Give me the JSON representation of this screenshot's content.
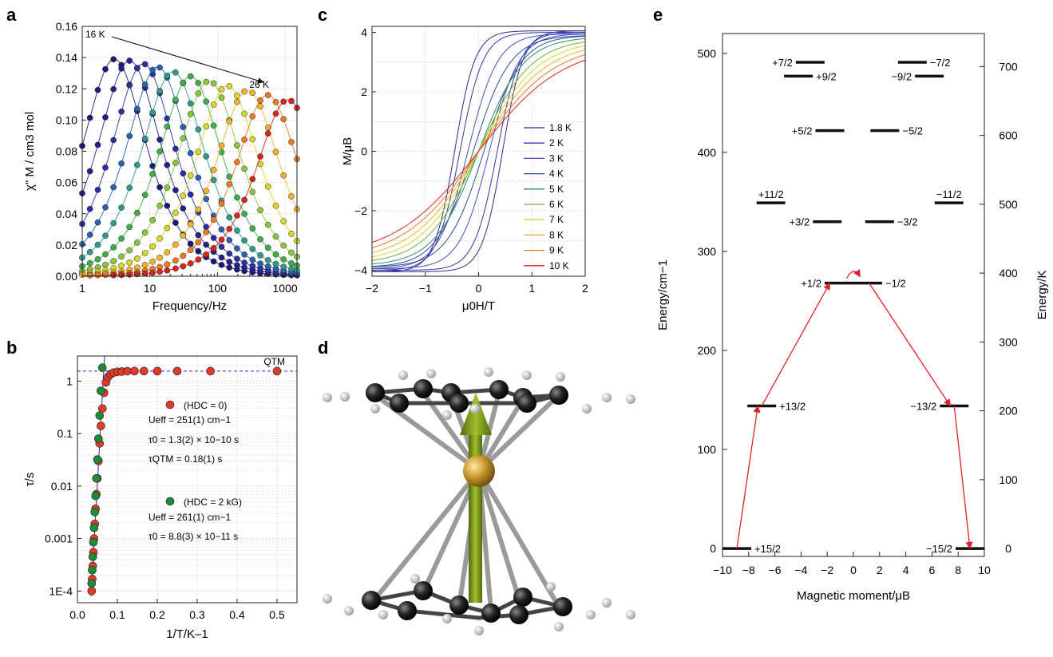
{
  "chart_data": [
    {
      "panel": "a",
      "type": "scatter",
      "xlabel": "Frequency/Hz",
      "ylabel": "χ\" M / cm3 mol",
      "xscale": "log",
      "xlim": [
        1,
        1500
      ],
      "ylim": [
        0,
        0.16
      ],
      "xticks": [
        "1",
        "10",
        "100",
        "1000"
      ],
      "yticks": [
        "0.00",
        "0.02",
        "0.04",
        "0.06",
        "0.08",
        "0.10",
        "0.12",
        "0.14",
        "0.16"
      ],
      "annotations": [
        "16 K",
        "26 K"
      ],
      "series": [
        {
          "T": 16,
          "peak_freq": 3,
          "peak_value": 0.139,
          "color": "#1a1a7a"
        },
        {
          "T": 17,
          "peak_freq": 5,
          "peak_value": 0.138,
          "color": "#22208a"
        },
        {
          "T": 18,
          "peak_freq": 8,
          "peak_value": 0.136,
          "color": "#2b2fa0"
        },
        {
          "T": 19,
          "peak_freq": 13,
          "peak_value": 0.134,
          "color": "#2c5fb0"
        },
        {
          "T": 20,
          "peak_freq": 22,
          "peak_value": 0.131,
          "color": "#2e9a8e"
        },
        {
          "T": 21,
          "peak_freq": 40,
          "peak_value": 0.128,
          "color": "#3fae4a"
        },
        {
          "T": 22,
          "peak_freq": 75,
          "peak_value": 0.125,
          "color": "#8cc63f"
        },
        {
          "T": 23,
          "peak_freq": 140,
          "peak_value": 0.122,
          "color": "#d8d82a"
        },
        {
          "T": 24,
          "peak_freq": 280,
          "peak_value": 0.119,
          "color": "#f2b52a"
        },
        {
          "T": 25,
          "peak_freq": 550,
          "peak_value": 0.116,
          "color": "#ee7a22"
        },
        {
          "T": 26,
          "peak_freq": 1100,
          "peak_value": 0.113,
          "color": "#d7261e"
        }
      ]
    },
    {
      "panel": "b",
      "type": "scatter",
      "xlabel": "1/T/K–1",
      "ylabel": "τ/s",
      "yscale": "log",
      "xlim": [
        0,
        0.55
      ],
      "ylim": [
        6e-05,
        3
      ],
      "xticks": [
        "0.0",
        "0.1",
        "0.2",
        "0.3",
        "0.4",
        "0.5"
      ],
      "yticks": [
        "1E-4",
        "0.001",
        "0.01",
        "0.1",
        "1"
      ],
      "qtm_label": "QTM",
      "series": [
        {
          "name": "(HDC = 0)",
          "color": "#e03a2a",
          "x": [
            0.0357,
            0.037,
            0.0385,
            0.04,
            0.0417,
            0.0435,
            0.0455,
            0.0476,
            0.05,
            0.0526,
            0.0556,
            0.0588,
            0.0625,
            0.0667,
            0.0714,
            0.0769,
            0.0833,
            0.0909,
            0.1,
            0.1111,
            0.125,
            0.1429,
            0.1667,
            0.2,
            0.25,
            0.3333,
            0.5
          ],
          "y": [
            0.0001,
            0.00017,
            0.0003,
            0.00055,
            0.001,
            0.0019,
            0.0037,
            0.007,
            0.014,
            0.03,
            0.065,
            0.14,
            0.3,
            0.6,
            0.95,
            1.2,
            1.35,
            1.45,
            1.5,
            1.52,
            1.54,
            1.55,
            1.55,
            1.55,
            1.55,
            1.55,
            1.55
          ]
        },
        {
          "name": "(HDC = 2 kG)",
          "color": "#1e8a3a",
          "x": [
            0.0357,
            0.037,
            0.0385,
            0.04,
            0.0417,
            0.0435,
            0.0455,
            0.0476,
            0.05,
            0.0526,
            0.0556,
            0.0588,
            0.0625
          ],
          "y": [
            0.00014,
            0.00025,
            0.00045,
            0.00085,
            0.0016,
            0.0032,
            0.0065,
            0.014,
            0.032,
            0.08,
            0.22,
            0.65,
            1.8
          ]
        }
      ],
      "legend": [
        {
          "label": "(HDC = 0)",
          "lines": [
            "Ueff = 251(1) cm−1",
            "τ0 = 1.3(2) × 10−10 s",
            "τQTM = 0.18(1) s"
          ]
        },
        {
          "label": "(HDC = 2 kG)",
          "lines": [
            "Ueff = 261(1) cm−1",
            "τ0 = 8.8(3) × 10−11 s"
          ]
        }
      ]
    },
    {
      "panel": "c",
      "type": "line",
      "xlabel": "μ0H/T",
      "ylabel": "M/μB",
      "xlim": [
        -2,
        2
      ],
      "ylim": [
        -4.2,
        4.2
      ],
      "xticks": [
        "−2",
        "−1",
        "0",
        "1",
        "2"
      ],
      "yticks": [
        "−4",
        "−2",
        "0",
        "2",
        "4"
      ],
      "series": [
        {
          "name": "1.8 K",
          "color": "#2a2a8c",
          "msat": 4.05,
          "k": 2.6,
          "coercive": 0.45
        },
        {
          "name": "2 K",
          "color": "#3336a8",
          "msat": 4.0,
          "k": 2.3,
          "coercive": 0.35
        },
        {
          "name": "3 K",
          "color": "#4a4ac4",
          "msat": 3.95,
          "k": 1.8,
          "coercive": 0.2
        },
        {
          "name": "4 K",
          "color": "#2c4f96",
          "msat": 3.9,
          "k": 1.45,
          "coercive": 0.1
        },
        {
          "name": "5 K",
          "color": "#2f8f6a",
          "msat": 3.85,
          "k": 1.2,
          "coercive": 0.0
        },
        {
          "name": "6 K",
          "color": "#6fb43a",
          "msat": 3.8,
          "k": 1.02,
          "coercive": 0.0
        },
        {
          "name": "7 K",
          "color": "#d9d633",
          "msat": 3.75,
          "k": 0.9,
          "coercive": 0.0
        },
        {
          "name": "8 K",
          "color": "#f2b32a",
          "msat": 3.7,
          "k": 0.8,
          "coercive": 0.0
        },
        {
          "name": "9 K",
          "color": "#ea7b24",
          "msat": 3.65,
          "k": 0.71,
          "coercive": 0.0
        },
        {
          "name": "10 K",
          "color": "#d8261e",
          "msat": 3.6,
          "k": 0.63,
          "coercive": 0.0
        }
      ]
    },
    {
      "panel": "e",
      "type": "scatter",
      "xlabel": "Magnetic moment/μB",
      "ylabel": "Energy/cm−1",
      "ylabel_right": "Energy/K",
      "xlim": [
        -10,
        10
      ],
      "ylim": [
        -8,
        520
      ],
      "ylim_right_K": [
        -11.5,
        748
      ],
      "xticks": [
        "−10",
        "−8",
        "−6",
        "−4",
        "−2",
        "0",
        "2",
        "4",
        "6",
        "8",
        "10"
      ],
      "yticks": [
        "0",
        "100",
        "200",
        "300",
        "400",
        "500"
      ],
      "yticks_right": [
        "0",
        "100",
        "200",
        "300",
        "400",
        "500",
        "600",
        "700"
      ],
      "levels": [
        {
          "label": "+15/2",
          "moment": -8.9,
          "energy": 0,
          "label_pos": "right"
        },
        {
          "label": "−15/2",
          "moment": 8.9,
          "energy": 0,
          "label_pos": "left"
        },
        {
          "label": "+13/2",
          "moment": -7.0,
          "energy": 144,
          "label_pos": "right"
        },
        {
          "label": "−13/2",
          "moment": 7.7,
          "energy": 144,
          "label_pos": "left"
        },
        {
          "label": "+1/2",
          "moment": -1.1,
          "energy": 268,
          "label_pos": "left"
        },
        {
          "label": "−1/2",
          "moment": 1.1,
          "energy": 268,
          "label_pos": "right"
        },
        {
          "label": "+3/2",
          "moment": -2.0,
          "energy": 330,
          "label_pos": "left"
        },
        {
          "label": "−3/2",
          "moment": 2.0,
          "energy": 330,
          "label_pos": "right"
        },
        {
          "label": "+11/2",
          "moment": -6.3,
          "energy": 349,
          "label_pos": "above"
        },
        {
          "label": "−11/2",
          "moment": 7.3,
          "energy": 349,
          "label_pos": "above"
        },
        {
          "label": "+5/2",
          "moment": -1.8,
          "energy": 422,
          "label_pos": "left"
        },
        {
          "label": "−5/2",
          "moment": 2.4,
          "energy": 422,
          "label_pos": "right"
        },
        {
          "label": "+9/2",
          "moment": -4.2,
          "energy": 477,
          "label_pos": "right"
        },
        {
          "label": "−9/2",
          "moment": 5.8,
          "energy": 477,
          "label_pos": "left"
        },
        {
          "label": "+7/2",
          "moment": -3.3,
          "energy": 491,
          "label_pos": "left"
        },
        {
          "label": "−7/2",
          "moment": 4.5,
          "energy": 491,
          "label_pos": "right"
        }
      ],
      "arrows": [
        {
          "from": [
            -8.9,
            0
          ],
          "to": [
            -7.3,
            144
          ]
        },
        {
          "from": [
            -7.0,
            144
          ],
          "to": [
            -1.8,
            268
          ]
        },
        {
          "from": [
            1.2,
            268
          ],
          "to": [
            7.4,
            144
          ]
        },
        {
          "from": [
            7.7,
            144
          ],
          "to": [
            8.9,
            0
          ]
        }
      ]
    }
  ],
  "panels": {
    "a": "a",
    "b": "b",
    "c": "c",
    "d": "d",
    "e": "e"
  },
  "colors": {
    "axis": "#222222",
    "grid": "#d0d0d0",
    "arrow": "#e0202a",
    "qtm_line": "#2a2aa8",
    "atom_dark": "#1a1a1a",
    "atom_h": "#e6e6e6",
    "metal": "#c8962a",
    "moment_arrow": "#7a9a1e"
  },
  "molecule_icon": "dysprosocenium-molecule"
}
